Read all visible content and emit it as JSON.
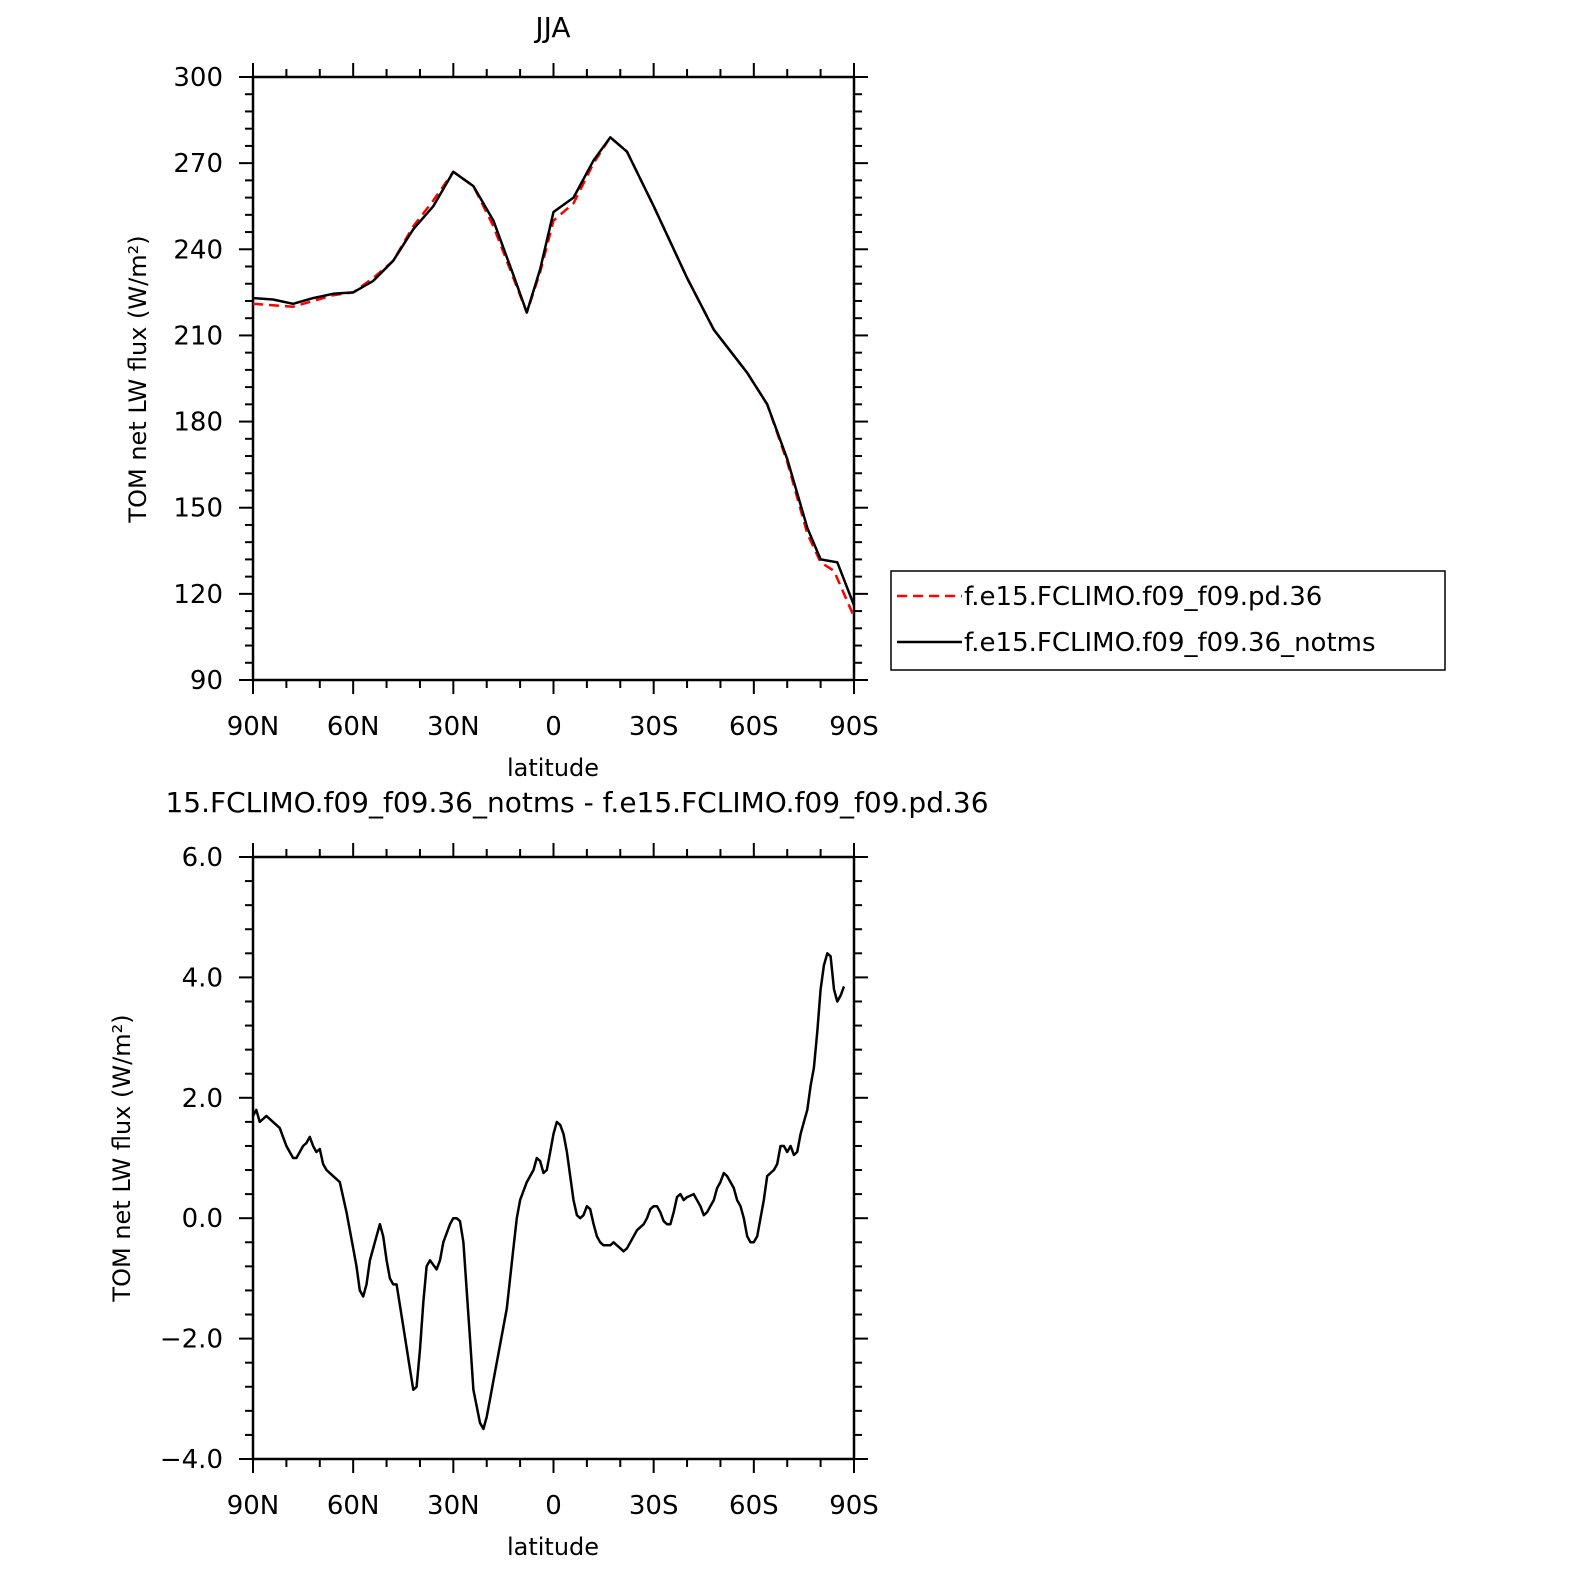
{
  "chart_data": [
    {
      "type": "line",
      "title": "JJA",
      "xlabel": "latitude",
      "ylabel": "TOM net LW flux (W/m²)",
      "xlim": [
        90,
        -90
      ],
      "ylim": [
        90,
        300
      ],
      "x_ticks": [
        90,
        60,
        30,
        0,
        -30,
        -60,
        -90
      ],
      "x_tick_labels": [
        "90N",
        "60N",
        "30N",
        "0",
        "30S",
        "60S",
        "90S"
      ],
      "y_ticks": [
        90,
        120,
        150,
        180,
        210,
        240,
        270,
        300
      ],
      "y_tick_labels": [
        "90",
        "120",
        "150",
        "180",
        "210",
        "240",
        "270",
        "300"
      ],
      "legend_position": "right",
      "series": [
        {
          "name": "f.e15.FCLIMO.f09_f09.pd.36",
          "color": "#ff0000",
          "style": "dashed",
          "points": [
            [
              90,
              221
            ],
            [
              84,
              220.5
            ],
            [
              78,
              220
            ],
            [
              72,
              222
            ],
            [
              66,
              224
            ],
            [
              60,
              225
            ],
            [
              54,
              230
            ],
            [
              48,
              236
            ],
            [
              42,
              248
            ],
            [
              36,
              257
            ],
            [
              30,
              267
            ],
            [
              24,
              262
            ],
            [
              18,
              248
            ],
            [
              12,
              230
            ],
            [
              8,
              218
            ],
            [
              4,
              232
            ],
            [
              0,
              250
            ],
            [
              -6,
              256
            ],
            [
              -12,
              270
            ],
            [
              -17,
              279
            ],
            [
              -22,
              274
            ],
            [
              -30,
              255
            ],
            [
              -40,
              230
            ],
            [
              -48,
              212
            ],
            [
              -58,
              197
            ],
            [
              -64,
              186
            ],
            [
              -70,
              166
            ],
            [
              -76,
              141
            ],
            [
              -80,
              131
            ],
            [
              -84,
              128
            ],
            [
              -87,
              120
            ],
            [
              -90,
              112
            ]
          ]
        },
        {
          "name": "f.e15.FCLIMO.f09_f09.36_notms",
          "color": "#000000",
          "style": "solid",
          "points": [
            [
              90,
              223
            ],
            [
              84,
              222.5
            ],
            [
              78,
              221
            ],
            [
              72,
              223
            ],
            [
              66,
              224.5
            ],
            [
              60,
              225
            ],
            [
              54,
              229
            ],
            [
              48,
              236
            ],
            [
              42,
              247
            ],
            [
              36,
              255
            ],
            [
              30,
              267
            ],
            [
              24,
              262
            ],
            [
              18,
              250
            ],
            [
              12,
              231
            ],
            [
              8,
              218
            ],
            [
              4,
              233
            ],
            [
              0,
              253
            ],
            [
              -6,
              258
            ],
            [
              -12,
              271
            ],
            [
              -17,
              279
            ],
            [
              -22,
              274
            ],
            [
              -30,
              255
            ],
            [
              -40,
              230
            ],
            [
              -48,
              212
            ],
            [
              -58,
              197
            ],
            [
              -64,
              186
            ],
            [
              -70,
              167
            ],
            [
              -76,
              143
            ],
            [
              -80,
              132
            ],
            [
              -85,
              131
            ],
            [
              -88,
              122
            ],
            [
              -90,
              116
            ]
          ]
        }
      ]
    },
    {
      "type": "line",
      "title": "15.FCLIMO.f09_f09.36_notms - f.e15.FCLIMO.f09_f09.pd.36",
      "xlabel": "latitude",
      "ylabel": "TOM net LW flux (W/m²)",
      "xlim": [
        90,
        -90
      ],
      "ylim": [
        -4,
        6
      ],
      "x_ticks": [
        90,
        60,
        30,
        0,
        -30,
        -60,
        -90
      ],
      "x_tick_labels": [
        "90N",
        "60N",
        "30N",
        "0",
        "30S",
        "60S",
        "90S"
      ],
      "y_ticks": [
        -4,
        -2,
        0,
        2,
        4,
        6
      ],
      "y_tick_labels": [
        "−4.0",
        "−2.0",
        "0.0",
        "2.0",
        "4.0",
        "6.0"
      ],
      "series": [
        {
          "color": "#000000",
          "style": "solid",
          "points": [
            [
              90,
              1.7
            ],
            [
              89,
              1.8
            ],
            [
              88,
              1.6
            ],
            [
              86,
              1.7
            ],
            [
              84,
              1.6
            ],
            [
              82,
              1.5
            ],
            [
              80,
              1.2
            ],
            [
              78,
              1.0
            ],
            [
              77,
              1.0
            ],
            [
              75,
              1.2
            ],
            [
              74,
              1.25
            ],
            [
              73,
              1.35
            ],
            [
              72,
              1.2
            ],
            [
              71,
              1.1
            ],
            [
              70,
              1.15
            ],
            [
              69,
              0.9
            ],
            [
              68,
              0.8
            ],
            [
              66,
              0.7
            ],
            [
              64,
              0.6
            ],
            [
              62,
              0.1
            ],
            [
              60,
              -0.5
            ],
            [
              59,
              -0.8
            ],
            [
              58,
              -1.2
            ],
            [
              57,
              -1.3
            ],
            [
              56,
              -1.1
            ],
            [
              55,
              -0.7
            ],
            [
              53,
              -0.3
            ],
            [
              52,
              -0.1
            ],
            [
              51,
              -0.3
            ],
            [
              50,
              -0.7
            ],
            [
              49,
              -1.0
            ],
            [
              48,
              -1.1
            ],
            [
              47,
              -1.1
            ],
            [
              45,
              -1.8
            ],
            [
              43,
              -2.5
            ],
            [
              42,
              -2.85
            ],
            [
              41,
              -2.8
            ],
            [
              40,
              -2.2
            ],
            [
              39,
              -1.4
            ],
            [
              38,
              -0.8
            ],
            [
              37,
              -0.7
            ],
            [
              35,
              -0.85
            ],
            [
              34,
              -0.7
            ],
            [
              33,
              -0.4
            ],
            [
              31,
              -0.1
            ],
            [
              30,
              0.0
            ],
            [
              29,
              0.0
            ],
            [
              28,
              -0.05
            ],
            [
              27,
              -0.4
            ],
            [
              26,
              -1.2
            ],
            [
              25,
              -2.0
            ],
            [
              24,
              -2.85
            ],
            [
              22,
              -3.4
            ],
            [
              21,
              -3.5
            ],
            [
              20,
              -3.3
            ],
            [
              19,
              -3.0
            ],
            [
              18,
              -2.7
            ],
            [
              16,
              -2.1
            ],
            [
              14,
              -1.5
            ],
            [
              12,
              -0.5
            ],
            [
              11,
              0.0
            ],
            [
              10,
              0.3
            ],
            [
              8,
              0.6
            ],
            [
              6,
              0.8
            ],
            [
              5,
              1.0
            ],
            [
              4,
              0.95
            ],
            [
              3,
              0.75
            ],
            [
              2,
              0.8
            ],
            [
              1,
              1.1
            ],
            [
              0,
              1.4
            ],
            [
              -1,
              1.6
            ],
            [
              -2,
              1.55
            ],
            [
              -3,
              1.4
            ],
            [
              -4,
              1.1
            ],
            [
              -5,
              0.7
            ],
            [
              -6,
              0.3
            ],
            [
              -7,
              0.05
            ],
            [
              -8,
              0.0
            ],
            [
              -9,
              0.05
            ],
            [
              -10,
              0.2
            ],
            [
              -11,
              0.15
            ],
            [
              -12,
              -0.1
            ],
            [
              -13,
              -0.3
            ],
            [
              -14,
              -0.4
            ],
            [
              -15,
              -0.45
            ],
            [
              -17,
              -0.45
            ],
            [
              -18,
              -0.4
            ],
            [
              -19,
              -0.45
            ],
            [
              -20,
              -0.5
            ],
            [
              -21,
              -0.55
            ],
            [
              -22,
              -0.5
            ],
            [
              -23,
              -0.4
            ],
            [
              -25,
              -0.2
            ],
            [
              -27,
              -0.1
            ],
            [
              -28,
              0.0
            ],
            [
              -29,
              0.15
            ],
            [
              -30,
              0.2
            ],
            [
              -31,
              0.2
            ],
            [
              -32,
              0.1
            ],
            [
              -33,
              -0.05
            ],
            [
              -34,
              -0.1
            ],
            [
              -35,
              -0.1
            ],
            [
              -36,
              0.1
            ],
            [
              -37,
              0.35
            ],
            [
              -38,
              0.4
            ],
            [
              -39,
              0.3
            ],
            [
              -40,
              0.35
            ],
            [
              -42,
              0.4
            ],
            [
              -44,
              0.2
            ],
            [
              -45,
              0.05
            ],
            [
              -46,
              0.1
            ],
            [
              -47,
              0.2
            ],
            [
              -48,
              0.3
            ],
            [
              -49,
              0.5
            ],
            [
              -50,
              0.6
            ],
            [
              -51,
              0.75
            ],
            [
              -52,
              0.7
            ],
            [
              -53,
              0.6
            ],
            [
              -54,
              0.5
            ],
            [
              -55,
              0.3
            ],
            [
              -56,
              0.2
            ],
            [
              -57,
              0.0
            ],
            [
              -58,
              -0.3
            ],
            [
              -59,
              -0.4
            ],
            [
              -60,
              -0.4
            ],
            [
              -61,
              -0.3
            ],
            [
              -62,
              0.0
            ],
            [
              -63,
              0.3
            ],
            [
              -64,
              0.7
            ],
            [
              -65,
              0.75
            ],
            [
              -66,
              0.8
            ],
            [
              -67,
              0.9
            ],
            [
              -68,
              1.2
            ],
            [
              -69,
              1.2
            ],
            [
              -70,
              1.1
            ],
            [
              -71,
              1.2
            ],
            [
              -72,
              1.05
            ],
            [
              -73,
              1.1
            ],
            [
              -74,
              1.4
            ],
            [
              -75,
              1.6
            ],
            [
              -76,
              1.8
            ],
            [
              -77,
              2.2
            ],
            [
              -78,
              2.5
            ],
            [
              -79,
              3.1
            ],
            [
              -80,
              3.8
            ],
            [
              -81,
              4.2
            ],
            [
              -82,
              4.4
            ],
            [
              -83,
              4.35
            ],
            [
              -84,
              3.8
            ],
            [
              -85,
              3.6
            ],
            [
              -86,
              3.7
            ],
            [
              -87,
              3.85
            ]
          ]
        }
      ]
    }
  ]
}
